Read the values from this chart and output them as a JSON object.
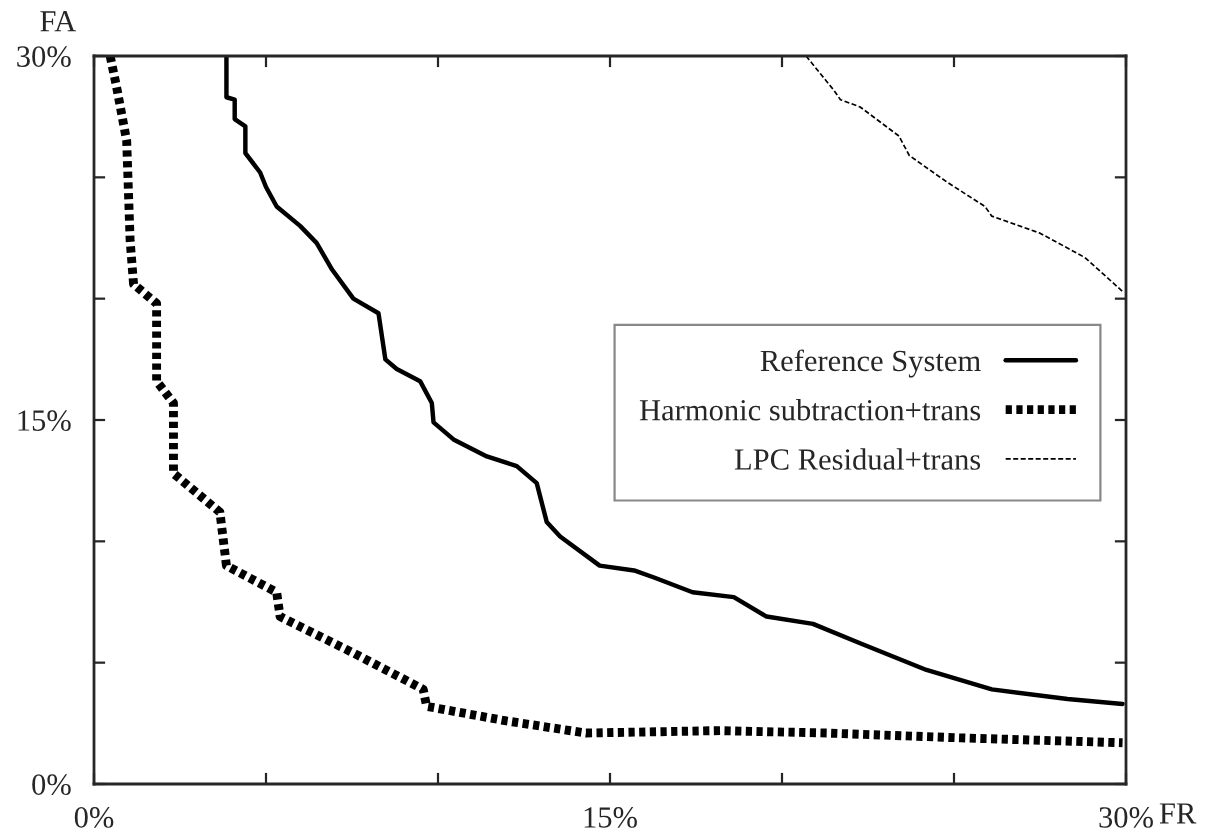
{
  "chart_data": {
    "type": "line",
    "xlabel": "FR",
    "ylabel": "FA",
    "xlim": [
      0,
      30
    ],
    "ylim": [
      0,
      30
    ],
    "xticks": [
      {
        "value": 0,
        "label": "0%"
      },
      {
        "value": 5,
        "label": null
      },
      {
        "value": 10,
        "label": null
      },
      {
        "value": 15,
        "label": "15%"
      },
      {
        "value": 20,
        "label": null
      },
      {
        "value": 25,
        "label": null
      },
      {
        "value": 30,
        "label": "30%"
      }
    ],
    "yticks": [
      {
        "value": 0,
        "label": "0%"
      },
      {
        "value": 5,
        "label": null
      },
      {
        "value": 10,
        "label": null
      },
      {
        "value": 15,
        "label": "15%"
      },
      {
        "value": 20,
        "label": null
      },
      {
        "value": 25,
        "label": null
      },
      {
        "value": 30,
        "label": "30%"
      }
    ],
    "grid": false,
    "legend": "right",
    "marker": "none",
    "series": [
      {
        "name": "Reference System",
        "color": "#000000",
        "line_style": "solid",
        "x": [
          3.85,
          3.85,
          4.09,
          4.09,
          4.4,
          4.4,
          4.83,
          5.0,
          5.31,
          5.99,
          6.47,
          6.92,
          7.54,
          8.27,
          8.47,
          8.8,
          9.48,
          9.82,
          9.87,
          10.45,
          11.42,
          12.29,
          12.87,
          13.16,
          13.55,
          14.7,
          15.7,
          16.3,
          17.4,
          18.6,
          19.55,
          20.9,
          22.27,
          24.2,
          26.1,
          28.3,
          29.9
        ],
        "values": [
          30,
          28.3,
          28.2,
          27.4,
          27.1,
          26.0,
          25.2,
          24.6,
          23.8,
          23.0,
          22.3,
          21.2,
          20.0,
          19.4,
          17.5,
          17.1,
          16.6,
          15.7,
          14.9,
          14.2,
          13.5,
          13.1,
          12.4,
          10.8,
          10.2,
          9.0,
          8.8,
          8.5,
          7.9,
          7.7,
          6.9,
          6.6,
          5.8,
          4.7,
          3.9,
          3.5,
          3.3
        ]
      },
      {
        "name": "Harmonic subtraction+trans",
        "color": "#000000",
        "line_style": "dotted",
        "x": [
          0.47,
          0.66,
          0.95,
          1.05,
          1.15,
          1.82,
          1.82,
          2.31,
          2.31,
          3.66,
          3.85,
          5.31,
          5.41,
          7.54,
          9.57,
          9.67,
          11.99,
          14.3,
          18.2,
          21.3,
          25.2,
          29.9
        ],
        "values": [
          30,
          28.7,
          26.5,
          22.4,
          20.6,
          19.8,
          16.6,
          15.7,
          12.8,
          11.2,
          9.0,
          7.9,
          6.9,
          5.4,
          3.9,
          3.2,
          2.6,
          2.1,
          2.2,
          2.1,
          1.9,
          1.7
        ]
      },
      {
        "name": "LPC Residual+trans",
        "color": "#000000",
        "line_style": "dashed",
        "x": [
          20.7,
          21.5,
          21.7,
          22.27,
          23.4,
          23.7,
          24.8,
          25.9,
          26.1,
          27.5,
          28.8,
          29.9
        ],
        "values": [
          30,
          28.6,
          28.2,
          27.9,
          26.7,
          25.9,
          24.8,
          23.8,
          23.4,
          22.7,
          21.7,
          20.3
        ]
      }
    ]
  }
}
